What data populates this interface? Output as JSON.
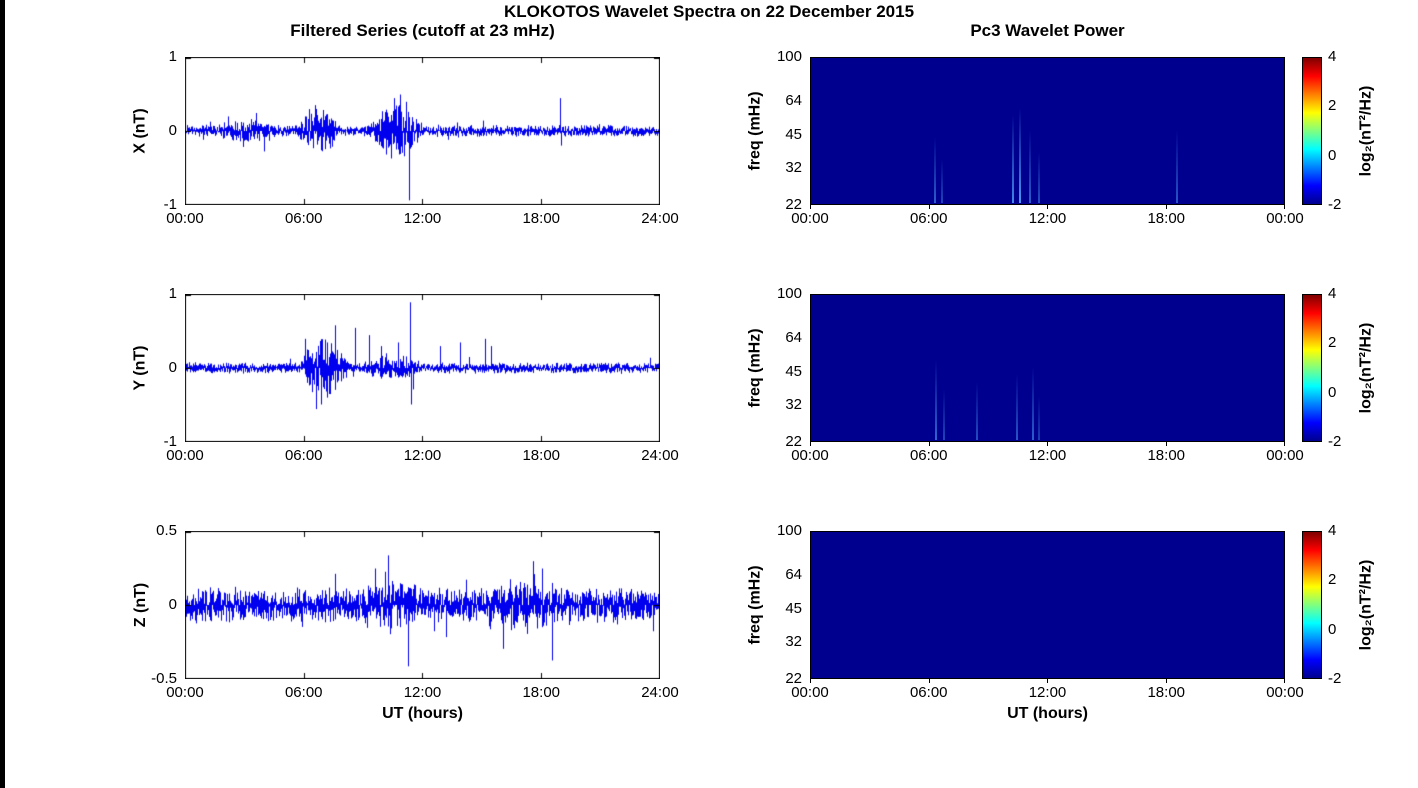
{
  "figure": {
    "title": "KLOKOTOS Wavelet Spectra on 22 December 2015",
    "left_title": "Filtered Series (cutoff at 23 mHz)",
    "right_title": "Pc3 Wavelet Power",
    "xlabel": "UT (hours)",
    "colors": {
      "line": "#0000EE",
      "spectrogram_bg": "#00008F",
      "axis": "#000000",
      "streak": "80,170,255"
    }
  },
  "chart_data": {
    "type": "line",
    "time_series": [
      {
        "name": "X",
        "ylabel": "X (nT)",
        "ylim": [
          -1,
          1
        ],
        "yticks": [
          "1",
          "0",
          "-1"
        ],
        "xticks": [
          "00:00",
          "06:00",
          "12:00",
          "18:00",
          "24:00"
        ],
        "xrange_hours": [
          0,
          24
        ],
        "base_noise": 0.05,
        "bursts": [
          {
            "start": 5.7,
            "end": 7.8,
            "amp": 0.16
          },
          {
            "start": 9.3,
            "end": 12.0,
            "amp": 0.2
          },
          {
            "start": 1.5,
            "end": 4.5,
            "amp": 0.05
          }
        ],
        "spikes": [
          {
            "t": 4.0,
            "amp": -0.28
          },
          {
            "t": 6.3,
            "amp": 0.3
          },
          {
            "t": 10.6,
            "amp": 0.45
          },
          {
            "t": 10.9,
            "amp": 0.5
          },
          {
            "t": 11.2,
            "amp": 0.4
          },
          {
            "t": 11.35,
            "amp": -0.95
          },
          {
            "t": 19.0,
            "amp": 0.45
          },
          {
            "t": 19.05,
            "amp": -0.2
          }
        ]
      },
      {
        "name": "Y",
        "ylabel": "Y (nT)",
        "ylim": [
          -1,
          1
        ],
        "yticks": [
          "1",
          "0",
          "-1"
        ],
        "xticks": [
          "00:00",
          "06:00",
          "12:00",
          "18:00",
          "24:00"
        ],
        "xrange_hours": [
          0,
          24
        ],
        "base_noise": 0.045,
        "bursts": [
          {
            "start": 5.8,
            "end": 8.3,
            "amp": 0.22
          },
          {
            "start": 9.0,
            "end": 12.0,
            "amp": 0.08
          }
        ],
        "spikes": [
          {
            "t": 6.1,
            "amp": 0.4
          },
          {
            "t": 6.9,
            "amp": -0.5
          },
          {
            "t": 7.2,
            "amp": 0.35
          },
          {
            "t": 8.6,
            "amp": 0.55
          },
          {
            "t": 9.3,
            "amp": 0.45
          },
          {
            "t": 9.9,
            "amp": 0.3
          },
          {
            "t": 10.8,
            "amp": 0.35
          },
          {
            "t": 11.4,
            "amp": 0.9
          },
          {
            "t": 11.45,
            "amp": -0.5
          },
          {
            "t": 12.9,
            "amp": 0.3
          },
          {
            "t": 13.9,
            "amp": 0.35
          },
          {
            "t": 15.2,
            "amp": 0.4
          },
          {
            "t": 15.5,
            "amp": 0.3
          }
        ]
      },
      {
        "name": "Z",
        "ylabel": "Z (nT)",
        "ylim": [
          -0.5,
          0.5
        ],
        "yticks": [
          "0.5",
          "0",
          "-0.5"
        ],
        "xticks": [
          "00:00",
          "06:00",
          "12:00",
          "18:00",
          "24:00"
        ],
        "xrange_hours": [
          0,
          24
        ],
        "base_noise": 0.07,
        "bursts": [
          {
            "start": 8.5,
            "end": 12.0,
            "amp": 0.04
          },
          {
            "start": 15.5,
            "end": 19.0,
            "amp": 0.05
          }
        ],
        "spikes": [
          {
            "t": 5.9,
            "amp": -0.15
          },
          {
            "t": 9.6,
            "amp": 0.25
          },
          {
            "t": 10.4,
            "amp": -0.2
          },
          {
            "t": 11.3,
            "amp": -0.42
          },
          {
            "t": 12.6,
            "amp": -0.18
          },
          {
            "t": 13.2,
            "amp": -0.22
          },
          {
            "t": 16.1,
            "amp": -0.3
          },
          {
            "t": 17.6,
            "amp": 0.3
          },
          {
            "t": 18.1,
            "amp": 0.25
          },
          {
            "t": 18.6,
            "amp": -0.38
          }
        ]
      }
    ],
    "spectrograms": [
      {
        "name": "X",
        "ylabel": "freq (mHz)",
        "yticks": [
          "100",
          "64",
          "45",
          "32",
          "22"
        ],
        "freq_range": [
          22,
          100
        ],
        "xticks": [
          "00:00",
          "06:00",
          "12:00",
          "18:00",
          "00:00"
        ],
        "xrange_hours": [
          0,
          24
        ],
        "streaks": [
          {
            "t": 6.25,
            "height_frac": 0.45,
            "intensity": 0.55
          },
          {
            "t": 6.6,
            "height_frac": 0.3,
            "intensity": 0.4
          },
          {
            "t": 10.2,
            "height_frac": 0.6,
            "intensity": 0.8
          },
          {
            "t": 10.55,
            "height_frac": 0.65,
            "intensity": 0.9
          },
          {
            "t": 11.05,
            "height_frac": 0.5,
            "intensity": 0.55
          },
          {
            "t": 11.5,
            "height_frac": 0.35,
            "intensity": 0.45
          },
          {
            "t": 18.5,
            "height_frac": 0.5,
            "intensity": 0.5
          }
        ]
      },
      {
        "name": "Y",
        "ylabel": "freq (mHz)",
        "yticks": [
          "100",
          "64",
          "45",
          "32",
          "22"
        ],
        "freq_range": [
          22,
          100
        ],
        "xticks": [
          "00:00",
          "06:00",
          "12:00",
          "18:00",
          "00:00"
        ],
        "xrange_hours": [
          0,
          24
        ],
        "streaks": [
          {
            "t": 6.3,
            "height_frac": 0.55,
            "intensity": 0.6
          },
          {
            "t": 6.7,
            "height_frac": 0.35,
            "intensity": 0.4
          },
          {
            "t": 8.35,
            "height_frac": 0.4,
            "intensity": 0.45
          },
          {
            "t": 10.4,
            "height_frac": 0.45,
            "intensity": 0.5
          },
          {
            "t": 11.2,
            "height_frac": 0.5,
            "intensity": 0.55
          },
          {
            "t": 11.5,
            "height_frac": 0.3,
            "intensity": 0.35
          }
        ]
      },
      {
        "name": "Z",
        "ylabel": "freq (mHz)",
        "yticks": [
          "100",
          "64",
          "45",
          "32",
          "22"
        ],
        "freq_range": [
          22,
          100
        ],
        "xticks": [
          "00:00",
          "06:00",
          "12:00",
          "18:00",
          "00:00"
        ],
        "xrange_hours": [
          0,
          24
        ],
        "streaks": []
      }
    ],
    "colorbar": {
      "label": "log₂(nT²/Hz)",
      "ticks": [
        4,
        2,
        0,
        -2
      ],
      "range": [
        -2,
        4
      ],
      "colormap": "jet",
      "stops": [
        {
          "pos": 0,
          "color": "#00008F"
        },
        {
          "pos": 0.125,
          "color": "#0000FF"
        },
        {
          "pos": 0.375,
          "color": "#00FFFF"
        },
        {
          "pos": 0.625,
          "color": "#FFFF00"
        },
        {
          "pos": 0.875,
          "color": "#FF0000"
        },
        {
          "pos": 1,
          "color": "#800000"
        }
      ]
    }
  }
}
